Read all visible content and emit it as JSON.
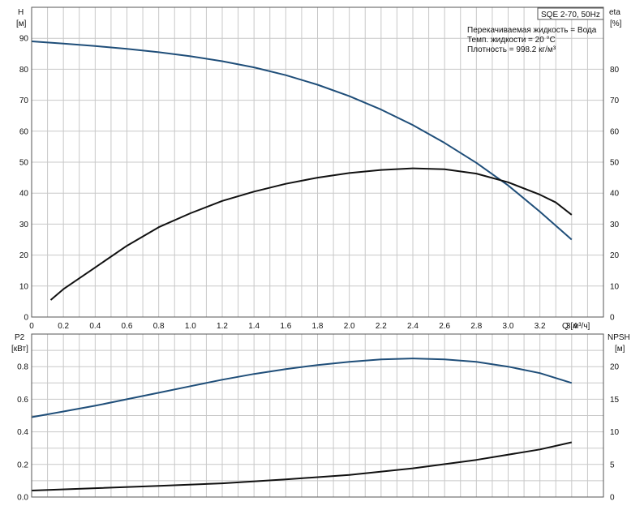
{
  "chart_data": [
    {
      "type": "line",
      "panel": "top",
      "title": "SQE 2-70, 50Hz",
      "notes": [
        "Перекачиваемая жидкость = Вода",
        "Темп. жидкости = 20 °C",
        "Плотность = 998.2 кг/м³"
      ],
      "xlabel": "Q [м³/ч]",
      "ylabel_left": [
        "H",
        "[м]"
      ],
      "ylabel_right": [
        "eta",
        "[%]"
      ],
      "xlim": [
        0,
        3.6
      ],
      "ylim_left": [
        0,
        100
      ],
      "ylim_right": [
        0,
        100
      ],
      "xticks": [
        "0",
        "0.2",
        "0.4",
        "0.6",
        "0.8",
        "1.0",
        "1.2",
        "1.4",
        "1.6",
        "1.8",
        "2.0",
        "2.2",
        "2.4",
        "2.6",
        "2.8",
        "3.0",
        "3.2",
        "3.4"
      ],
      "yticks_left": [
        "0",
        "10",
        "20",
        "30",
        "40",
        "50",
        "60",
        "70",
        "80",
        "90"
      ],
      "yticks_right": [
        "0",
        "10",
        "20",
        "30",
        "40",
        "50",
        "60",
        "70",
        "80"
      ],
      "grid": true,
      "series": [
        {
          "axis": "left",
          "color": "#1f4e79",
          "x": [
            0,
            0.2,
            0.4,
            0.6,
            0.8,
            1.0,
            1.2,
            1.4,
            1.6,
            1.8,
            2.0,
            2.2,
            2.4,
            2.6,
            2.8,
            3.0,
            3.2,
            3.4
          ],
          "y": [
            89,
            88.3,
            87.5,
            86.6,
            85.5,
            84.2,
            82.6,
            80.6,
            78.1,
            75.0,
            71.3,
            67.0,
            62.0,
            56.2,
            49.8,
            42.5,
            34.0,
            25.0
          ]
        },
        {
          "axis": "right",
          "color": "#111111",
          "x": [
            0.12,
            0.2,
            0.4,
            0.6,
            0.8,
            1.0,
            1.2,
            1.4,
            1.6,
            1.8,
            2.0,
            2.2,
            2.4,
            2.6,
            2.8,
            3.0,
            3.2,
            3.3,
            3.4
          ],
          "y": [
            5.5,
            9,
            16,
            23,
            29,
            33.5,
            37.5,
            40.5,
            43,
            45,
            46.5,
            47.5,
            48,
            47.7,
            46.3,
            43.5,
            39.5,
            37,
            33
          ]
        }
      ]
    },
    {
      "type": "line",
      "panel": "bottom",
      "ylabel_left": [
        "P2",
        "[кВт]"
      ],
      "ylabel_right": [
        "NPSH",
        "[м]"
      ],
      "xlim": [
        0,
        3.6
      ],
      "ylim_left": [
        0,
        1.0
      ],
      "ylim_right": [
        0,
        25
      ],
      "yticks_left": [
        "0.0",
        "0.2",
        "0.4",
        "0.6",
        "0.8"
      ],
      "yticks_right": [
        "0",
        "5",
        "10",
        "15",
        "20"
      ],
      "grid": true,
      "series": [
        {
          "axis": "left",
          "color": "#1f4e79",
          "x": [
            0,
            0.2,
            0.4,
            0.6,
            0.8,
            1.0,
            1.2,
            1.4,
            1.6,
            1.8,
            2.0,
            2.2,
            2.4,
            2.6,
            2.8,
            3.0,
            3.2,
            3.4
          ],
          "y": [
            0.49,
            0.525,
            0.56,
            0.6,
            0.64,
            0.68,
            0.72,
            0.755,
            0.785,
            0.81,
            0.83,
            0.845,
            0.85,
            0.845,
            0.83,
            0.8,
            0.76,
            0.7
          ]
        },
        {
          "axis": "right",
          "color": "#111111",
          "x": [
            0,
            0.4,
            0.8,
            1.2,
            1.6,
            2.0,
            2.4,
            2.8,
            3.2,
            3.4
          ],
          "y": [
            1.0,
            1.35,
            1.7,
            2.1,
            2.7,
            3.4,
            4.4,
            5.7,
            7.3,
            8.4
          ]
        }
      ]
    }
  ]
}
